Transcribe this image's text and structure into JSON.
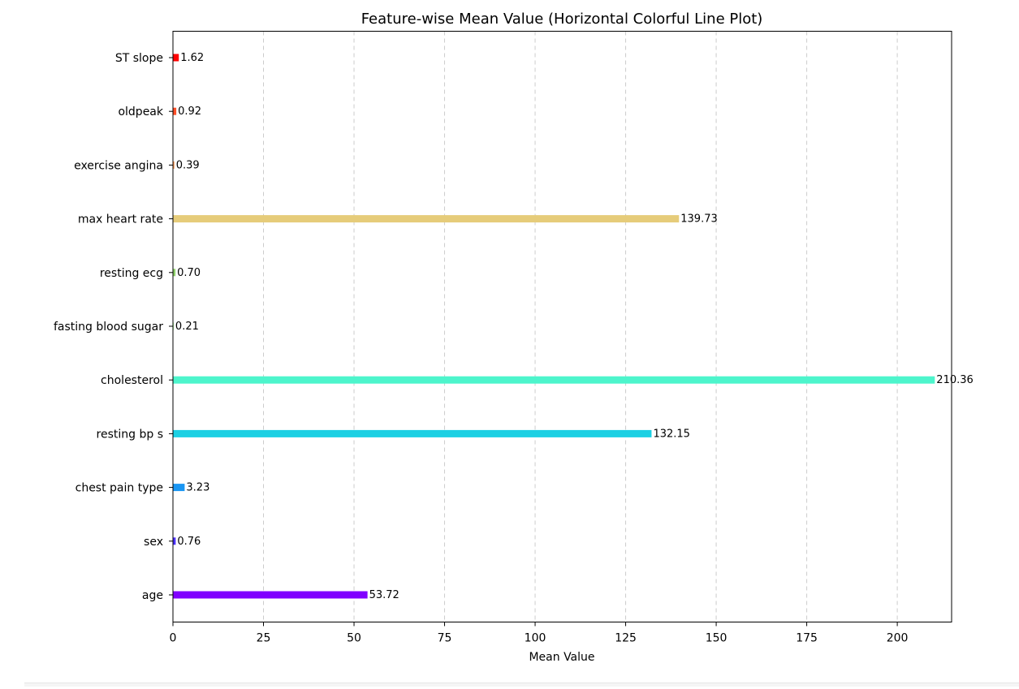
{
  "chart_data": {
    "type": "bar",
    "orientation": "horizontal",
    "title": "Feature-wise Mean Value (Horizontal Colorful Line Plot)",
    "xlabel": "Mean Value",
    "ylabel": "",
    "xlim": [
      0,
      215
    ],
    "xticks": [
      0,
      25,
      50,
      75,
      100,
      125,
      150,
      175,
      200
    ],
    "grid": "x-dashed",
    "categories": [
      "age",
      "sex",
      "chest pain type",
      "resting bp s",
      "cholesterol",
      "fasting blood sugar",
      "resting ecg",
      "max heart rate",
      "exercise angina",
      "oldpeak",
      "ST slope"
    ],
    "values": [
      53.72,
      0.76,
      3.23,
      132.15,
      210.36,
      0.21,
      0.7,
      139.73,
      0.39,
      0.92,
      1.62
    ],
    "value_labels": [
      "53.72",
      "0.76",
      "3.23",
      "132.15",
      "210.36",
      "0.21",
      "0.70",
      "139.73",
      "0.39",
      "0.92",
      "1.62"
    ],
    "colors": [
      "#8000ff",
      "#4a2ffc",
      "#1996f3",
      "#1cd0e3",
      "#4df5cc",
      "#a4fb8f",
      "#8ed06a",
      "#e6cc7a",
      "#ff964f",
      "#ff4e27",
      "#ff0000"
    ]
  }
}
